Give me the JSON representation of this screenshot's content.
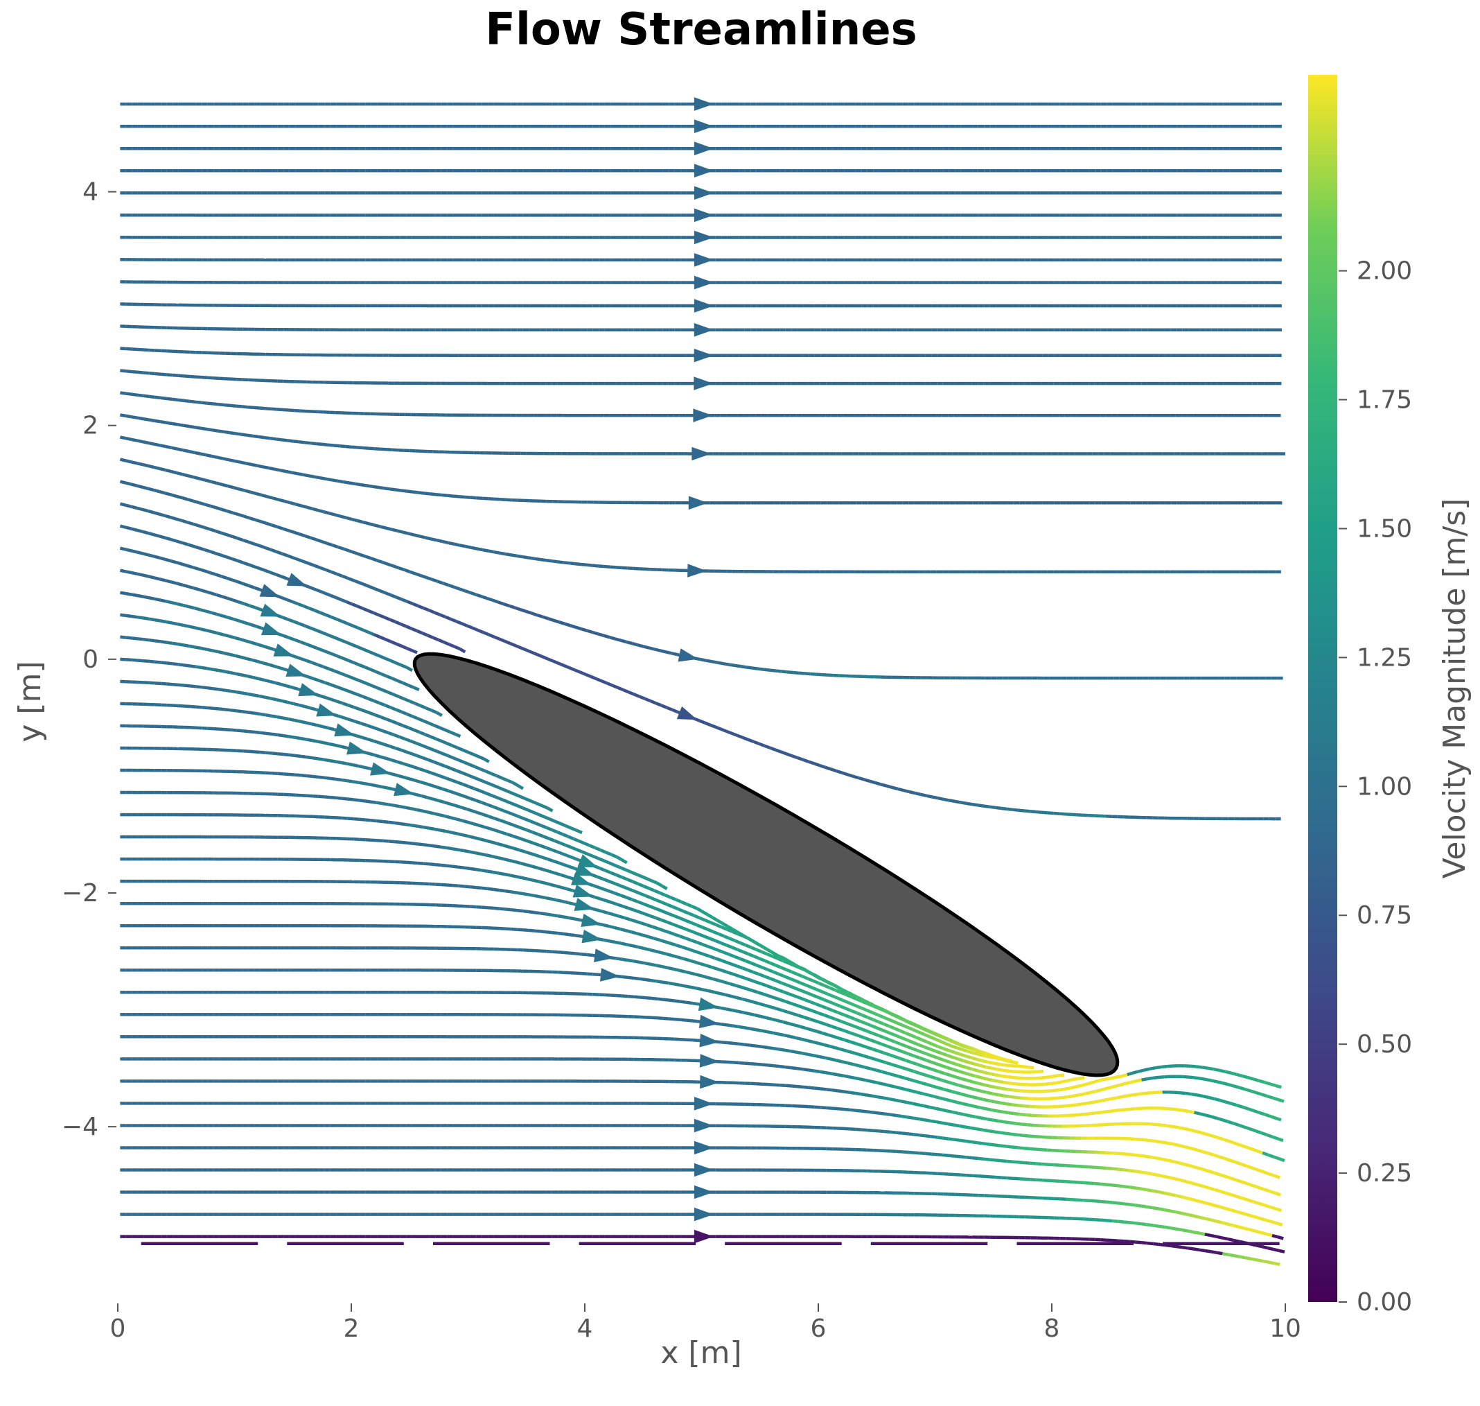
{
  "chart_data": {
    "type": "streamplot",
    "title": "Flow Streamlines",
    "xlabel": "x [m]",
    "ylabel": "y [m]",
    "xlim": [
      0,
      10
    ],
    "ylim": [
      -5.5,
      5
    ],
    "xticks": [
      0,
      2,
      4,
      6,
      8,
      10
    ],
    "yticks": [
      -4,
      -2,
      0,
      2,
      4
    ],
    "xtick_labels": [
      "0",
      "2",
      "4",
      "6",
      "8",
      "10"
    ],
    "ytick_labels": [
      "−4",
      "−2",
      "0",
      "2",
      "4"
    ],
    "grid": false,
    "colormap": "viridis",
    "colorbar": {
      "label": "Velocity Magnitude [m/s]",
      "range": [
        0,
        2.38
      ],
      "ticks": [
        0,
        0.25,
        0.5,
        0.75,
        1.0,
        1.25,
        1.5,
        1.75,
        2.0
      ],
      "tick_labels": [
        "0.00",
        "0.25",
        "0.50",
        "0.75",
        "1.00",
        "1.25",
        "1.50",
        "1.75",
        "2.00"
      ]
    },
    "obstacle": {
      "shape": "inclined airfoil",
      "fill": "#555555",
      "edge": "#000000",
      "leading_edge": [
        2.55,
        0.0
      ],
      "trailing_edge": [
        8.55,
        -3.5
      ]
    },
    "flow": {
      "freestream_speed": 0.95,
      "upper_region_speed": 0.9,
      "lower_region_speed": 1.1,
      "pressure_side_speed": 2.3,
      "wake_region": [
        8.0,
        9.5,
        -3.5,
        -1.5
      ],
      "wall_layer_y": -5.0,
      "wall_layer_speed": 0.15
    }
  }
}
